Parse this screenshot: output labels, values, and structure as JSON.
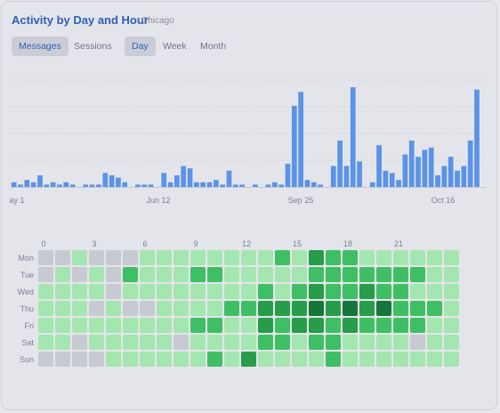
{
  "header": {
    "title": "Activity by Day and Hour",
    "location": "Chicago"
  },
  "metric_tabs": [
    {
      "label": "Messages",
      "active": true
    },
    {
      "label": "Sessions",
      "active": false
    }
  ],
  "range_tabs": [
    {
      "label": "Day",
      "active": true
    },
    {
      "label": "Week",
      "active": false
    },
    {
      "label": "Month",
      "active": false
    }
  ],
  "colors": {
    "bar": "#5b93e6",
    "heat_empty": "#c8cad2",
    "heat_levels": [
      "#a4e6b0",
      "#6fd489",
      "#3fbf63",
      "#279d4a",
      "#17753a"
    ],
    "grid": "#c9ccd4"
  },
  "chart_data": [
    {
      "type": "bar",
      "x_tick_labels": [
        "ay 1",
        "Jun 12",
        "Sep 25",
        "Oct 16"
      ],
      "values": [
        2,
        1,
        3,
        2,
        5,
        1,
        2,
        1,
        2,
        1,
        0,
        1,
        1,
        1,
        6,
        5,
        4,
        2,
        0,
        1,
        1,
        1,
        0,
        6,
        2,
        5,
        9,
        8,
        2,
        2,
        2,
        3,
        1,
        7,
        1,
        1,
        0,
        1,
        0,
        1,
        2,
        1,
        10,
        35,
        41,
        3,
        2,
        1,
        0,
        9,
        20,
        9,
        43,
        11,
        0,
        2,
        18,
        7,
        6,
        3,
        14,
        20,
        13,
        16,
        17,
        5,
        9,
        13,
        7,
        9,
        20,
        42,
        0
      ]
    },
    {
      "type": "heatmap",
      "rows": [
        "Mon",
        "Tue",
        "Wed",
        "Thu",
        "Fri",
        "Sat",
        "Sun"
      ],
      "hour_tick_labels": [
        "0",
        "3",
        "6",
        "9",
        "12",
        "15",
        "18",
        "21"
      ],
      "levels": [
        [
          0,
          0,
          1,
          0,
          0,
          0,
          1,
          1,
          1,
          1,
          1,
          1,
          1,
          1,
          3,
          1,
          4,
          3,
          3,
          1,
          1,
          1,
          1,
          1,
          1
        ],
        [
          0,
          1,
          0,
          1,
          0,
          3,
          1,
          1,
          1,
          3,
          3,
          1,
          1,
          1,
          1,
          1,
          3,
          3,
          3,
          3,
          3,
          3,
          3,
          1,
          1
        ],
        [
          1,
          1,
          1,
          1,
          0,
          1,
          1,
          1,
          1,
          1,
          1,
          1,
          1,
          3,
          1,
          3,
          4,
          3,
          3,
          4,
          3,
          3,
          1,
          1,
          1
        ],
        [
          1,
          1,
          1,
          0,
          1,
          0,
          0,
          1,
          1,
          1,
          1,
          3,
          3,
          4,
          4,
          4,
          5,
          4,
          5,
          4,
          5,
          3,
          3,
          3,
          1
        ],
        [
          1,
          1,
          1,
          1,
          1,
          1,
          1,
          1,
          1,
          3,
          3,
          1,
          1,
          4,
          3,
          4,
          4,
          3,
          4,
          3,
          3,
          3,
          3,
          1,
          1
        ],
        [
          1,
          1,
          0,
          1,
          1,
          1,
          1,
          1,
          0,
          1,
          1,
          1,
          1,
          3,
          3,
          1,
          3,
          3,
          1,
          1,
          1,
          1,
          0,
          1,
          1
        ],
        [
          0,
          0,
          0,
          0,
          1,
          1,
          1,
          1,
          1,
          1,
          3,
          1,
          4,
          1,
          1,
          1,
          1,
          3,
          1,
          1,
          1,
          1,
          1,
          1,
          1
        ]
      ]
    }
  ]
}
